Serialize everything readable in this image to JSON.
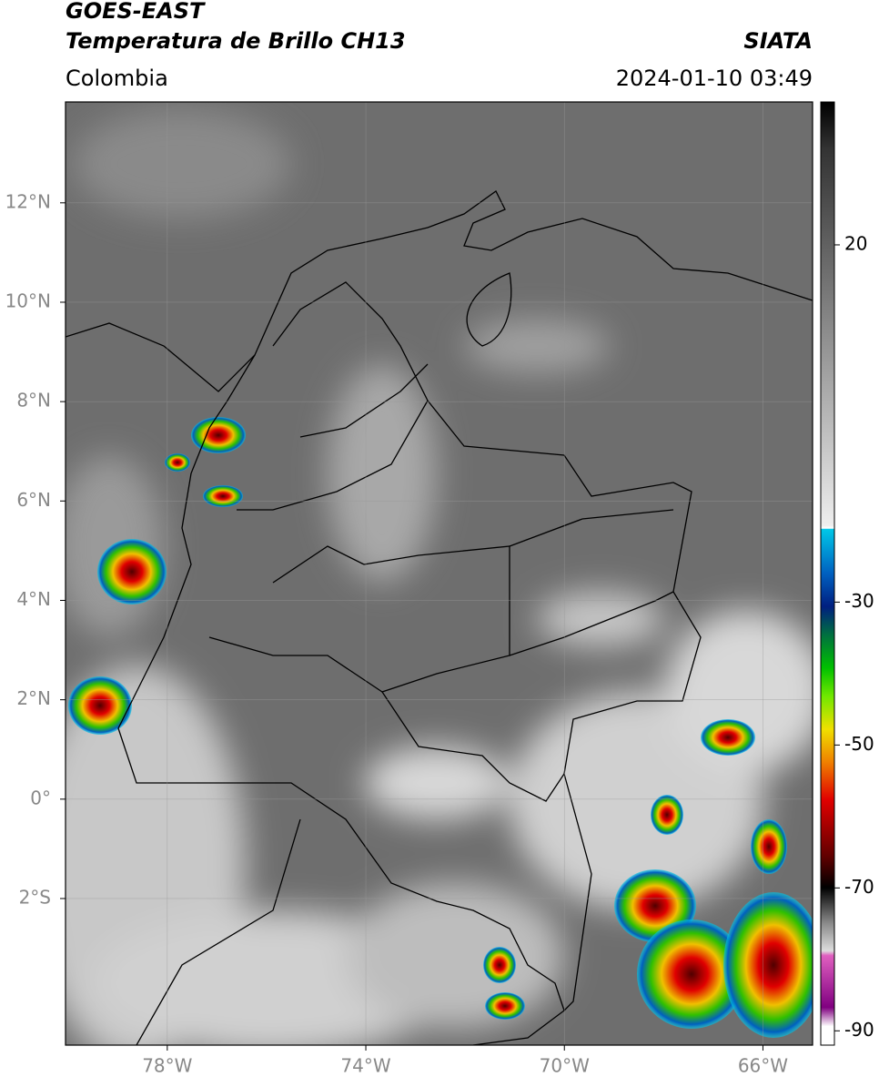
{
  "header": {
    "title": "GOES-EAST",
    "subtitle": "Temperatura de Brillo CH13",
    "source": "SIATA",
    "region": "Colombia",
    "timestamp": "2024-01-10 03:49"
  },
  "map": {
    "xlim": [
      -80.05,
      -65
    ],
    "ylim": [
      -4.95,
      14.03
    ],
    "xticks": [
      {
        "value": -78,
        "label": "78°W"
      },
      {
        "value": -74,
        "label": "74°W"
      },
      {
        "value": -70,
        "label": "70°W"
      },
      {
        "value": -66,
        "label": "66°W"
      }
    ],
    "yticks": [
      {
        "value": 12,
        "label": "12°N"
      },
      {
        "value": 10,
        "label": "10°N"
      },
      {
        "value": 8,
        "label": "8°N"
      },
      {
        "value": 6,
        "label": "6°N"
      },
      {
        "value": 4,
        "label": "4°N"
      },
      {
        "value": 2,
        "label": "2°N"
      },
      {
        "value": 0,
        "label": "0°"
      },
      {
        "value": -2,
        "label": "2°S"
      }
    ],
    "grid": true
  },
  "colorbar": {
    "lim": [
      -92,
      40
    ],
    "ticks": [
      20,
      -30,
      -50,
      -70,
      -90
    ]
  }
}
